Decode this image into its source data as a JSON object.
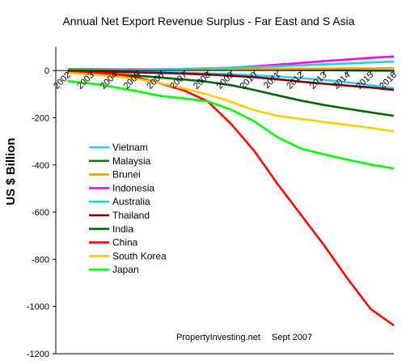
{
  "chart_data": {
    "type": "line",
    "title": "Annual Net Export Revenue Surplus -  Far East and S Asia",
    "ylabel": "US $ Billion",
    "xlabel": "",
    "ylim": [
      -1200,
      100
    ],
    "yticks": [
      0,
      -200,
      -400,
      -600,
      -800,
      -1000,
      -1200
    ],
    "x": [
      "2002",
      "2003",
      "2004",
      "2005",
      "2006",
      "2007",
      "2008",
      "2009",
      "2010",
      "2011",
      "2012",
      "2013",
      "2014",
      "2015",
      "2016"
    ],
    "legend_position": "left-middle",
    "grid": false,
    "series": [
      {
        "name": "Vietnam",
        "color": "#33ccff",
        "values": [
          0,
          -2,
          -3,
          -5,
          -7,
          -9,
          -12,
          -15,
          -20,
          -25,
          -32,
          -40,
          -50,
          -62,
          -75
        ]
      },
      {
        "name": "Malaysia",
        "color": "#008000",
        "values": [
          5,
          5,
          5,
          5,
          5,
          5,
          5,
          4,
          4,
          3,
          3,
          2,
          1,
          0,
          -1
        ]
      },
      {
        "name": "Brunei",
        "color": "#ff9900",
        "values": [
          3,
          3,
          4,
          4,
          5,
          5,
          6,
          6,
          7,
          7,
          8,
          8,
          9,
          9,
          10
        ]
      },
      {
        "name": "Indonesia",
        "color": "#ff00ff",
        "values": [
          3,
          3,
          4,
          4,
          5,
          7,
          9,
          12,
          18,
          25,
          32,
          40,
          47,
          54,
          60
        ]
      },
      {
        "name": "Australia",
        "color": "#33cccc",
        "values": [
          0,
          1,
          2,
          3,
          5,
          7,
          9,
          12,
          15,
          18,
          22,
          26,
          30,
          34,
          38
        ]
      },
      {
        "name": "Thailand",
        "color": "#800000",
        "values": [
          -2,
          -4,
          -6,
          -8,
          -10,
          -13,
          -17,
          -22,
          -28,
          -37,
          -47,
          -56,
          -64,
          -72,
          -82
        ]
      },
      {
        "name": "India",
        "color": "#006600",
        "values": [
          -5,
          -10,
          -16,
          -22,
          -30,
          -38,
          -48,
          -62,
          -82,
          -105,
          -127,
          -146,
          -162,
          -177,
          -192
        ]
      },
      {
        "name": "China",
        "color": "#ff0000",
        "values": [
          -5,
          -8,
          -15,
          -30,
          -55,
          -85,
          -130,
          -225,
          -340,
          -480,
          -610,
          -740,
          -880,
          -1010,
          -1080
        ]
      },
      {
        "name": "South Korea",
        "color": "#ffcc00",
        "values": [
          -10,
          -16,
          -24,
          -36,
          -54,
          -76,
          -102,
          -132,
          -168,
          -192,
          -205,
          -218,
          -230,
          -243,
          -258
        ]
      },
      {
        "name": "Japan",
        "color": "#00ff00",
        "values": [
          -45,
          -55,
          -70,
          -88,
          -108,
          -118,
          -130,
          -165,
          -215,
          -282,
          -330,
          -355,
          -377,
          -398,
          -415
        ]
      }
    ],
    "annotations": [
      "PropertyInvesting.net",
      "Sept 2007"
    ]
  }
}
